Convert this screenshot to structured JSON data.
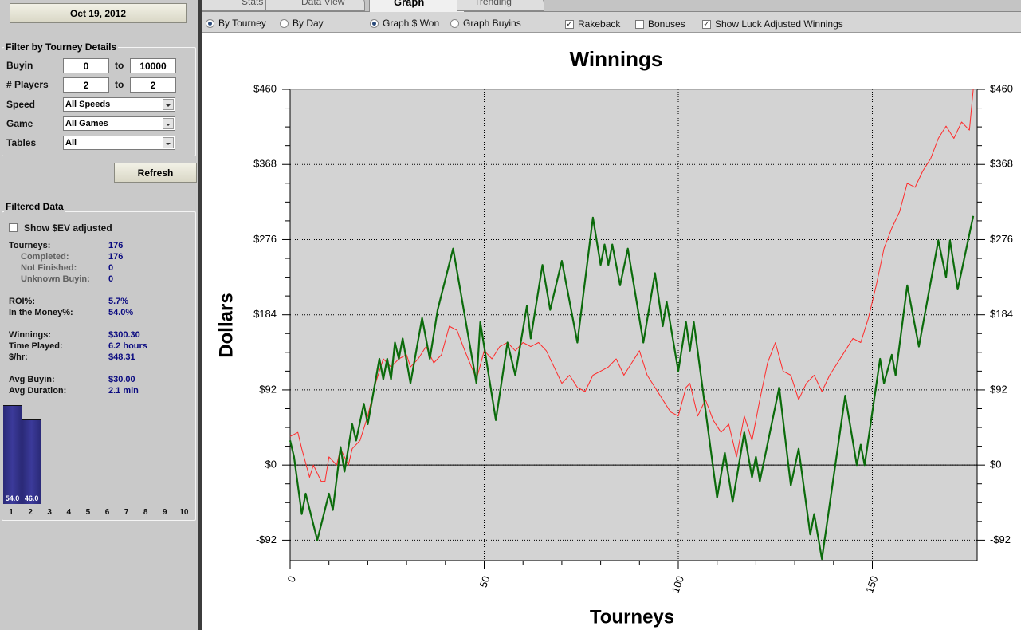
{
  "sidebar": {
    "date": "Oct 19, 2012",
    "filter_title": "Filter by Tourney Details",
    "filters": [
      {
        "label": "Buyin",
        "from": "0",
        "to_label": "to",
        "to": "10000"
      },
      {
        "label": "# Players",
        "from": "2",
        "to_label": "to",
        "to": "2"
      },
      {
        "label": "Speed",
        "select": "All Speeds"
      },
      {
        "label": "Game",
        "select": "All Games"
      },
      {
        "label": "Tables",
        "select": "All"
      }
    ],
    "refresh": "Refresh",
    "filtered_title": "Filtered Data",
    "ev_checkbox": {
      "label": "Show $EV adjusted",
      "checked": false
    },
    "stats": [
      [
        {
          "label": "Tourneys:",
          "value": "176"
        },
        {
          "label": "Completed:",
          "value": "176",
          "sub": true
        },
        {
          "label": "Not Finished:",
          "value": "0",
          "sub": true
        },
        {
          "label": "Unknown Buyin:",
          "value": "0",
          "sub": true
        }
      ],
      [
        {
          "label": "ROI%:",
          "value": "5.7%"
        },
        {
          "label": "In the Money%:",
          "value": "54.0%"
        }
      ],
      [
        {
          "label": "Winnings:",
          "value": "$300.30"
        },
        {
          "label": "Time Played:",
          "value": "6.2 hours"
        },
        {
          "label": "$/hr:",
          "value": "$48.31"
        }
      ],
      [
        {
          "label": "Avg Buyin:",
          "value": "$30.00"
        },
        {
          "label": "Avg Duration:",
          "value": "2.1 min"
        }
      ]
    ],
    "histogram": {
      "categories": [
        1,
        2,
        3,
        4,
        5,
        6,
        7,
        8,
        9,
        10
      ],
      "values": [
        54.0,
        46.0,
        null,
        null,
        null,
        null,
        null,
        null,
        null,
        null
      ],
      "value_labels": [
        "54.0",
        "46.0",
        null,
        null,
        null,
        null,
        null,
        null,
        null,
        null
      ],
      "ylim": [
        0,
        60
      ],
      "color": "#2b2a78"
    }
  },
  "tabs": {
    "items": [
      "Stats",
      "Data View",
      "Graph",
      "Trending"
    ],
    "active": 2
  },
  "options": {
    "radios": [
      [
        {
          "label": "By Tourney",
          "checked": true
        },
        {
          "label": "By Day",
          "checked": false
        }
      ],
      [
        {
          "label": "Graph $ Won",
          "checked": true
        },
        {
          "label": "Graph Buyins",
          "checked": false
        }
      ]
    ],
    "checkboxes": [
      {
        "label": "Rakeback",
        "checked": true
      },
      {
        "label": "Bonuses",
        "checked": false
      },
      {
        "label": "Show Luck Adjusted Winnings",
        "checked": true
      }
    ]
  },
  "chart_data": {
    "type": "line",
    "title": "Winnings",
    "y_label": "Dollars",
    "x_label": "Tourneys",
    "xlim": [
      0,
      177
    ],
    "xticks": [
      0,
      50,
      100,
      150
    ],
    "ylim": [
      -117,
      460
    ],
    "yticks": [
      {
        "value": -92,
        "label": "-$92"
      },
      {
        "value": 0,
        "label": "$0"
      },
      {
        "value": 92,
        "label": "$92"
      },
      {
        "value": 184,
        "label": "$184"
      },
      {
        "value": 276,
        "label": "$276"
      },
      {
        "value": 368,
        "label": "$368"
      },
      {
        "value": 460,
        "label": "$460"
      }
    ],
    "grid": true,
    "series": [
      {
        "color": "#ff2a2a",
        "width": 1,
        "x": [
          0,
          2,
          3,
          5,
          6,
          8,
          9,
          10,
          12,
          13,
          15,
          16,
          18,
          20,
          22,
          24,
          26,
          28,
          30,
          31,
          33,
          35,
          37,
          39,
          41,
          43,
          45,
          48,
          50,
          52,
          54,
          56,
          58,
          60,
          62,
          64,
          66,
          68,
          70,
          72,
          74,
          76,
          78,
          80,
          82,
          84,
          86,
          88,
          90,
          92,
          94,
          96,
          98,
          100,
          102,
          103,
          105,
          107,
          109,
          111,
          113,
          115,
          117,
          119,
          121,
          123,
          125,
          127,
          129,
          131,
          133,
          135,
          137,
          139,
          141,
          143,
          145,
          147,
          149,
          151,
          153,
          155,
          157,
          159,
          161,
          163,
          165,
          167,
          169,
          171,
          173,
          175,
          176
        ],
        "values": [
          35,
          40,
          20,
          -15,
          0,
          -20,
          -20,
          10,
          0,
          20,
          0,
          20,
          30,
          60,
          100,
          130,
          120,
          130,
          135,
          120,
          130,
          145,
          125,
          135,
          170,
          165,
          140,
          105,
          140,
          130,
          145,
          150,
          140,
          150,
          145,
          150,
          140,
          120,
          100,
          110,
          95,
          90,
          110,
          115,
          120,
          130,
          110,
          125,
          140,
          110,
          95,
          80,
          65,
          60,
          95,
          100,
          60,
          80,
          55,
          40,
          50,
          10,
          60,
          30,
          80,
          125,
          150,
          115,
          110,
          80,
          100,
          110,
          90,
          110,
          125,
          140,
          155,
          150,
          180,
          220,
          265,
          290,
          310,
          345,
          340,
          360,
          375,
          400,
          415,
          400,
          420,
          410,
          460
        ]
      },
      {
        "color": "#0b6b0b",
        "width": 2.2,
        "x": [
          0,
          1,
          3,
          4,
          7,
          10,
          11,
          13,
          14,
          16,
          17,
          19,
          20,
          23,
          24,
          25,
          26,
          27,
          28,
          29,
          31,
          34,
          36,
          38,
          42,
          48,
          49,
          53,
          56,
          58,
          61,
          62,
          65,
          67,
          70,
          74,
          78,
          80,
          81,
          82,
          83,
          85,
          87,
          91,
          94,
          96,
          97,
          100,
          102,
          103,
          104,
          110,
          112,
          114,
          117,
          119,
          120,
          121,
          126,
          129,
          131,
          134,
          135,
          137,
          143,
          146,
          147,
          148,
          152,
          153,
          155,
          156,
          159,
          162,
          167,
          169,
          170,
          172,
          176
        ],
        "values": [
          30,
          10,
          -60,
          -35,
          -92,
          -35,
          -55,
          22,
          -8,
          50,
          30,
          75,
          50,
          130,
          105,
          130,
          105,
          150,
          130,
          155,
          100,
          180,
          130,
          190,
          265,
          100,
          175,
          55,
          150,
          110,
          195,
          155,
          245,
          190,
          250,
          150,
          303,
          245,
          270,
          245,
          270,
          220,
          265,
          150,
          235,
          170,
          200,
          115,
          175,
          140,
          175,
          -40,
          15,
          -45,
          40,
          -15,
          10,
          -20,
          95,
          -25,
          20,
          -85,
          -60,
          -115,
          85,
          0,
          25,
          0,
          130,
          100,
          135,
          110,
          220,
          145,
          275,
          230,
          275,
          215,
          305
        ]
      }
    ]
  }
}
